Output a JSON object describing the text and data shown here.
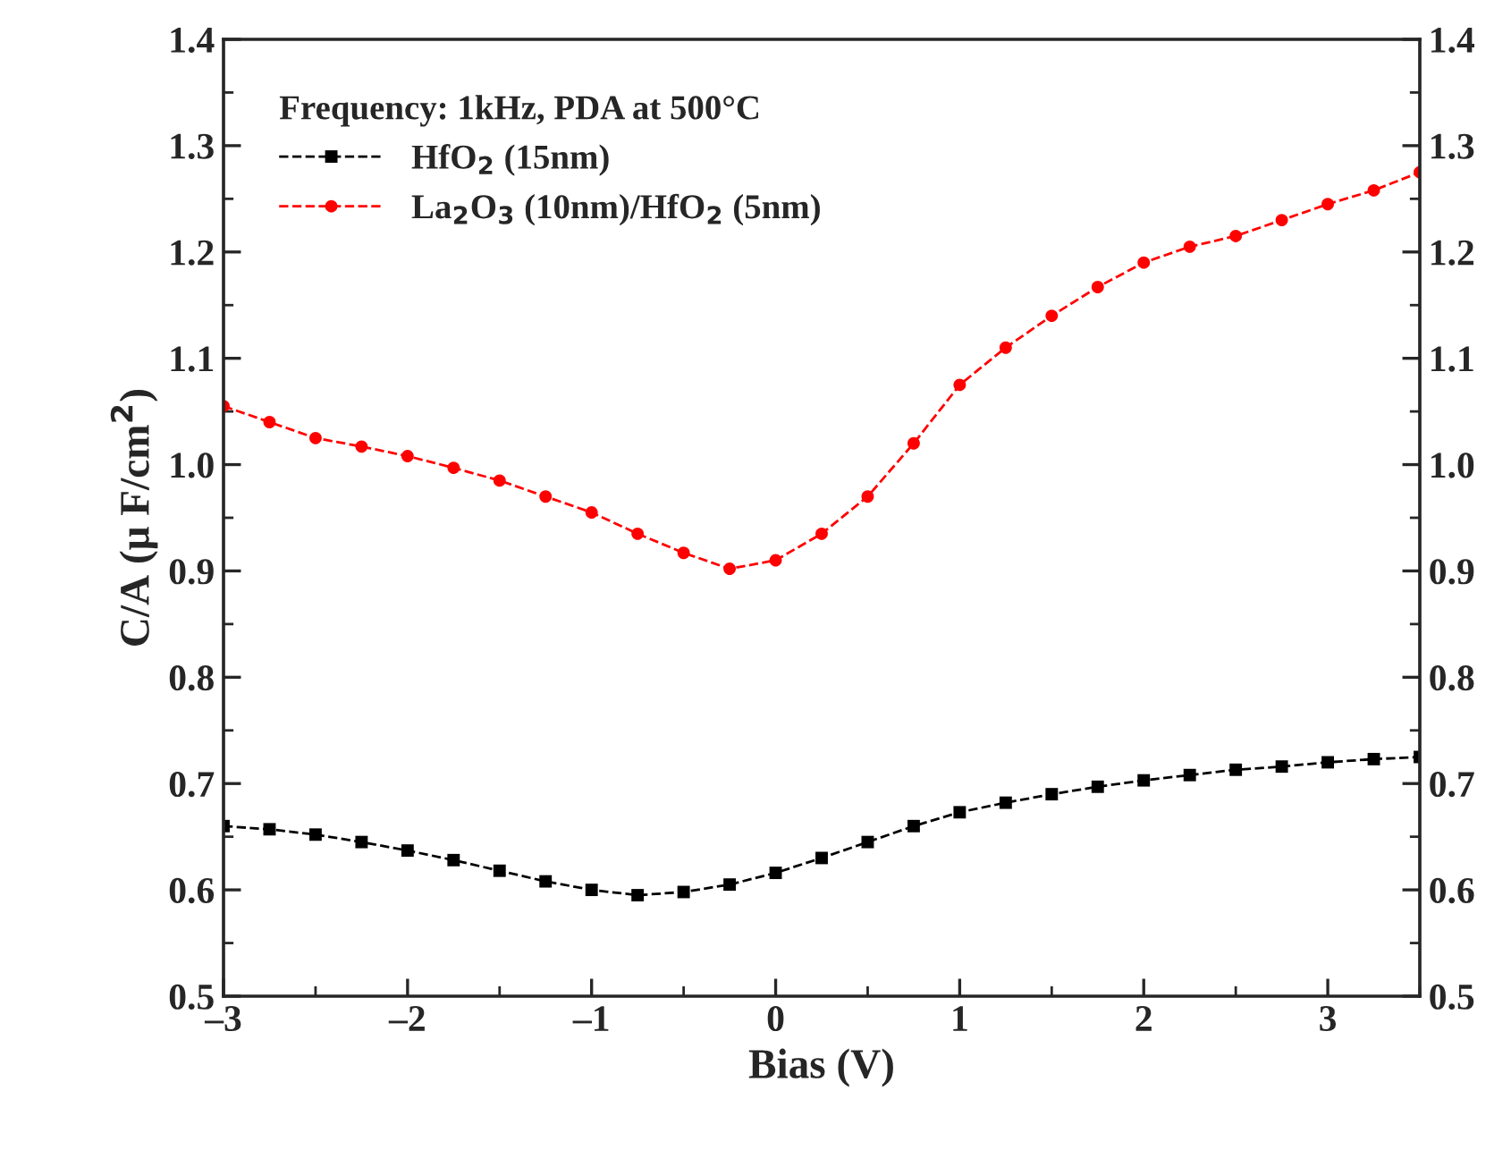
{
  "chart_data": {
    "type": "line",
    "xlabel": "Bias (V)",
    "ylabel": "C/A (μ F/cm$^{2}$)",
    "legend_title": "Frequency: 1kHz, PDA at 500°C",
    "x": [
      -3,
      -2.75,
      -2.5,
      -2.25,
      -2,
      -1.75,
      -1.5,
      -1.25,
      -1,
      -0.75,
      -0.5,
      -0.25,
      0,
      0.25,
      0.5,
      0.75,
      1,
      1.25,
      1.5,
      1.75,
      2,
      2.25,
      2.5,
      2.75,
      3,
      3.25,
      3.5
    ],
    "series": [
      {
        "name": "HfO$_{2}$ (15nm)",
        "color": "#000000",
        "marker": "square",
        "values": [
          0.66,
          0.657,
          0.652,
          0.645,
          0.637,
          0.628,
          0.618,
          0.608,
          0.6,
          0.595,
          0.598,
          0.605,
          0.616,
          0.63,
          0.645,
          0.66,
          0.673,
          0.682,
          0.69,
          0.697,
          0.703,
          0.708,
          0.713,
          0.716,
          0.72,
          0.723,
          0.725
        ]
      },
      {
        "name": "La$_{2}$O$_{3}$ (10nm)/HfO$_{2}$ (5nm)",
        "color": "#ff0000",
        "marker": "circle",
        "values": [
          1.055,
          1.04,
          1.025,
          1.017,
          1.008,
          0.997,
          0.985,
          0.97,
          0.955,
          0.935,
          0.917,
          0.902,
          0.91,
          0.935,
          0.97,
          1.02,
          1.075,
          1.11,
          1.14,
          1.167,
          1.19,
          1.205,
          1.215,
          1.23,
          1.245,
          1.258,
          1.275
        ]
      }
    ],
    "line_style": "dashed",
    "legend": "top left",
    "grid": false,
    "xlim": [
      -3,
      3.5
    ],
    "xticks": [
      {
        "value": -3,
        "label": "–3"
      },
      {
        "value": -2,
        "label": "–2"
      },
      {
        "value": -1,
        "label": "–1"
      },
      0,
      1,
      2,
      3
    ],
    "ylim": [
      0.5,
      1.4
    ],
    "yticks": [
      0.5,
      0.6,
      0.7,
      0.8,
      0.9,
      {
        "value": 1,
        "label": "1.0"
      },
      1.1,
      1.2,
      1.3,
      1.4
    ],
    "y2lim": [
      0.5,
      1.4
    ],
    "y2ticks": [
      0.5,
      0.6,
      0.7,
      0.8,
      0.9,
      {
        "value": 1,
        "label": "1.0"
      },
      1.1,
      1.2,
      1.3,
      1.4
    ]
  }
}
